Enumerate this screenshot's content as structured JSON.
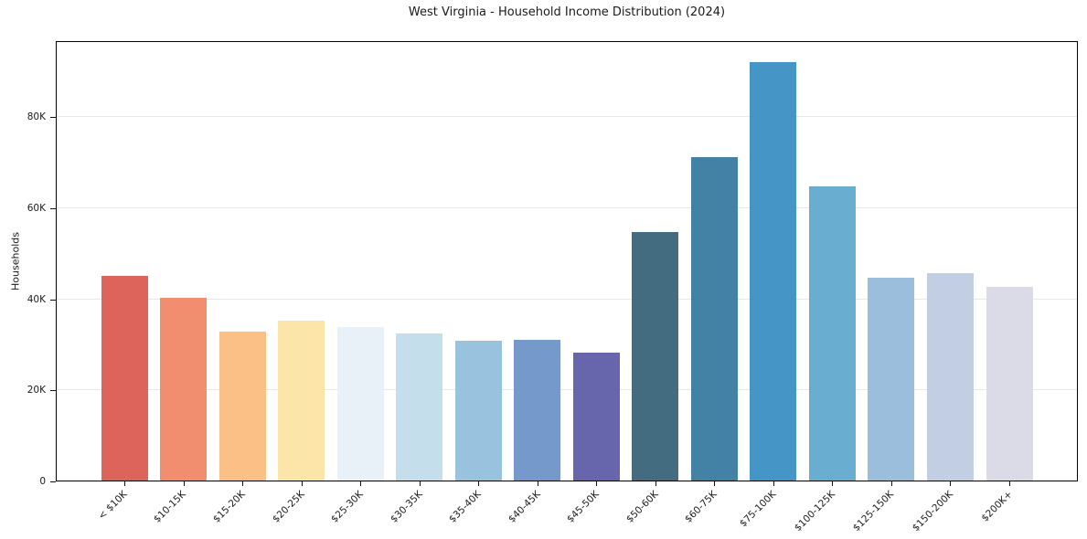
{
  "figure": {
    "background": "#ffffff"
  },
  "chart_data": {
    "type": "bar",
    "title": "West Virginia - Household Income Distribution (2024)",
    "xlabel": "",
    "ylabel": "Households",
    "categories": [
      "< $10K",
      "$10-15K",
      "$15-20K",
      "$20-25K",
      "$25-30K",
      "$30-35K",
      "$35-40K",
      "$40-45K",
      "$45-50K",
      "$50-60K",
      "$60-75K",
      "$75-100K",
      "$100-125K",
      "$125-150K",
      "$150-200K",
      "$200K+"
    ],
    "values": [
      45100,
      40400,
      33000,
      35400,
      34000,
      32600,
      30900,
      31000,
      28300,
      54800,
      71200,
      92100,
      64900,
      44800,
      45800,
      42800
    ],
    "bar_colors": [
      "#da5a50",
      "#ef8766",
      "#fabc7d",
      "#fce3a4",
      "#e6f0f6",
      "#c0dcea",
      "#93bedd",
      "#6b93c7",
      "#5d5ca8",
      "#386379",
      "#37799f",
      "#398ec4",
      "#60a8cd",
      "#94bad9",
      "#bdcbe1",
      "#d8d9e6"
    ],
    "ylim": [
      0,
      96700
    ],
    "yticks": [
      {
        "value": 0,
        "label": "0"
      },
      {
        "value": 20000,
        "label": "20K"
      },
      {
        "value": 40000,
        "label": "40K"
      },
      {
        "value": 60000,
        "label": "60K"
      },
      {
        "value": 80000,
        "label": "80K"
      }
    ],
    "grid": "horizontal",
    "legend": "none"
  },
  "colors": {
    "axis": "#000000",
    "grid": "#e8e8e8",
    "text": "#1a1a1a"
  }
}
